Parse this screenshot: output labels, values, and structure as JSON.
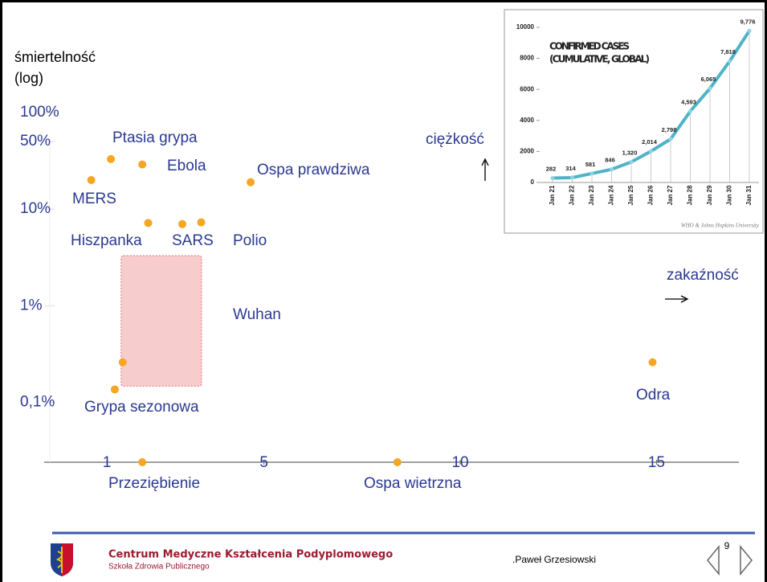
{
  "chart_data": [
    {
      "type": "scatter",
      "ylabel": "śmiertelność",
      "ylabel_note": "(log)",
      "y_annotation": "ciężkość",
      "x_annotation": "zakaźność",
      "log_y": true,
      "xlim": [
        -0.6,
        17.1
      ],
      "xticks": [
        1,
        5,
        10,
        15
      ],
      "ylim": [
        0.024,
        100
      ],
      "yticks": [
        {
          "value": 100,
          "label": "100%"
        },
        {
          "value": 50,
          "label": "50%"
        },
        {
          "value": 10,
          "label": "10%"
        },
        {
          "value": 1,
          "label": "1%"
        },
        {
          "value": 0.1,
          "label": "0,1%"
        }
      ],
      "color": "#f5a623",
      "label_color": "#2b3990",
      "points": [
        {
          "name": "MERS",
          "x": 0.6,
          "y": 20
        },
        {
          "name": "Ptasia grypa",
          "x": 1.1,
          "y": 33
        },
        {
          "name": "Ebola",
          "x": 1.9,
          "y": 29
        },
        {
          "name": "Ospa prawdziwa",
          "x": 4.66,
          "y": 19
        },
        {
          "name": "Hiszpanka",
          "x": 2.05,
          "y": 7.2
        },
        {
          "name": "SARS",
          "x": 2.92,
          "y": 7
        },
        {
          "name": "Polio",
          "x": 3.4,
          "y": 7.3
        },
        {
          "name": "Grypa sezonowa",
          "x": 1.2,
          "y": 0.136
        },
        {
          "name": "Przeziębienie",
          "x": 1.9,
          "y": 0.024
        },
        {
          "name": "Ospa wietrzna",
          "x": 8.4,
          "y": 0.024
        },
        {
          "name": "Odra",
          "x": 14.9,
          "y": 0.26
        }
      ],
      "region": {
        "name": "Wuhan",
        "x": [
          1.36,
          3.41
        ],
        "y": [
          0.147,
          3.3
        ],
        "color": "#f4b6b8",
        "point": {
          "x": 1.4,
          "y": 0.26
        }
      }
    },
    {
      "type": "line",
      "title": [
        "CONFIRMED CASES",
        "(CUMULATIVE, GLOBAL)"
      ],
      "source": "WHO & Johns Hopkins University",
      "categories": [
        "Jan 21",
        "Jan 22",
        "Jan 23",
        "Jan 24",
        "Jan 25",
        "Jan 26",
        "Jan 27",
        "Jan 28",
        "Jan 29",
        "Jan 30",
        "Jan 31"
      ],
      "values": [
        282,
        314,
        581,
        846,
        1320,
        2014,
        2798,
        4593,
        6065,
        7818,
        9776
      ],
      "value_labels": [
        "282",
        "314",
        "581",
        "846",
        "1,320",
        "2,014",
        "2,798",
        "4,593",
        "6,065",
        "7,818",
        "9,776"
      ],
      "color": "#4fb3c8",
      "ylim": [
        0,
        10000
      ],
      "yticks": [
        0,
        2000,
        4000,
        6000,
        8000,
        10000
      ]
    }
  ],
  "footer": {
    "institution": "Centrum Medyczne Kształcenia Podyplomowego",
    "school": "Szkoła Zdrowia Publicznego",
    "author": ".Paweł Grzesiowski",
    "page": 9
  }
}
